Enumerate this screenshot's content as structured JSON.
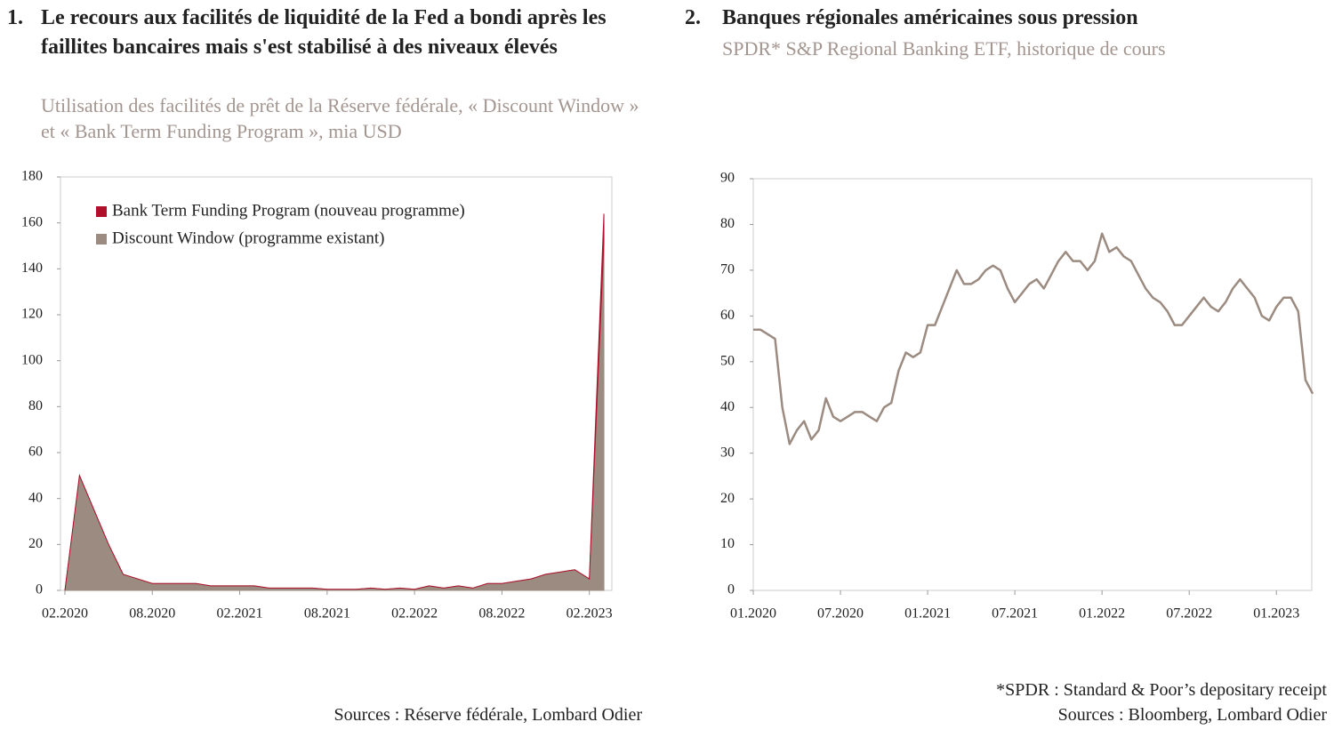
{
  "chart_data": [
    {
      "type": "area",
      "number": "1.",
      "title": "Le recours aux facilités de liquidité de la Fed a bondi après les faillites bancaires mais s'est stabilisé à des niveaux élevés",
      "subtitle": "Utilisation des facilités de prêt de la Réserve fédérale, « Discount Window » et « Bank Term Funding Program », mia USD",
      "source": "Sources : Réserve fédérale, Lombard Odier",
      "categories": [
        "02.2020",
        null,
        null,
        null,
        null,
        null,
        "08.2020",
        null,
        null,
        null,
        null,
        null,
        "02.2021",
        null,
        null,
        null,
        null,
        null,
        "08.2021",
        null,
        null,
        null,
        null,
        null,
        "02.2022",
        null,
        null,
        null,
        null,
        null,
        "08.2022",
        null,
        null,
        null,
        null,
        null,
        "02.2023",
        null
      ],
      "series": [
        {
          "name": "Discount Window (programme existant)",
          "color": "#9b8b81",
          "values": [
            0,
            50,
            35,
            20,
            7,
            5,
            3,
            3,
            3,
            3,
            2,
            2,
            2,
            2,
            1,
            1,
            1,
            1,
            0.5,
            0.5,
            0.5,
            1,
            0.5,
            1,
            0.5,
            2,
            1,
            2,
            1,
            3,
            3,
            4,
            5,
            7,
            8,
            9,
            5,
            152
          ]
        },
        {
          "name": "Bank Term Funding Program (nouveau programme)",
          "color": "#b0102a",
          "values": [
            0,
            0,
            0,
            0,
            0,
            0,
            0,
            0,
            0,
            0,
            0,
            0,
            0,
            0,
            0,
            0,
            0,
            0,
            0,
            0,
            0,
            0,
            0,
            0,
            0,
            0,
            0,
            0,
            0,
            0,
            0,
            0,
            0,
            0,
            0,
            0,
            0,
            12
          ]
        }
      ],
      "ylim": [
        0,
        180
      ],
      "yticks": [
        0,
        20,
        40,
        60,
        80,
        100,
        120,
        140,
        160,
        180
      ],
      "legend": "top-left",
      "stacked": true
    },
    {
      "type": "line",
      "number": "2.",
      "title": "Banques régionales américaines sous pression",
      "subtitle": "SPDR* S&P Regional Banking ETF, historique de cours",
      "footnote": "*SPDR : Standard & Poor’s depositary receipt",
      "source": "Sources : Bloomberg, Lombard Odier",
      "categories": [
        "01.2020",
        null,
        null,
        null,
        null,
        null,
        null,
        null,
        null,
        null,
        null,
        null,
        "07.2020",
        null,
        null,
        null,
        null,
        null,
        null,
        null,
        null,
        null,
        null,
        null,
        "01.2021",
        null,
        null,
        null,
        null,
        null,
        null,
        null,
        null,
        null,
        null,
        null,
        "07.2021",
        null,
        null,
        null,
        null,
        null,
        null,
        null,
        null,
        null,
        null,
        null,
        "01.2022",
        null,
        null,
        null,
        null,
        null,
        null,
        null,
        null,
        null,
        null,
        null,
        "07.2022",
        null,
        null,
        null,
        null,
        null,
        null,
        null,
        null,
        null,
        null,
        null,
        "01.2023",
        null,
        null,
        null,
        null,
        null
      ],
      "series": [
        {
          "name": "SPDR S&P Regional Banking ETF",
          "color": "#9b8b81",
          "values": [
            57,
            57,
            56,
            55,
            40,
            32,
            35,
            37,
            33,
            35,
            42,
            38,
            37,
            38,
            39,
            39,
            38,
            37,
            40,
            41,
            48,
            52,
            51,
            52,
            58,
            58,
            62,
            66,
            70,
            67,
            67,
            68,
            70,
            71,
            70,
            66,
            63,
            65,
            67,
            68,
            66,
            69,
            72,
            74,
            72,
            72,
            70,
            72,
            78,
            74,
            75,
            73,
            72,
            69,
            66,
            64,
            63,
            61,
            58,
            58,
            60,
            62,
            64,
            62,
            61,
            63,
            66,
            68,
            66,
            64,
            60,
            59,
            62,
            64,
            64,
            61,
            46,
            43
          ]
        }
      ],
      "ylim": [
        0,
        90
      ],
      "yticks": [
        0,
        10,
        20,
        30,
        40,
        50,
        60,
        70,
        80,
        90
      ]
    }
  ]
}
